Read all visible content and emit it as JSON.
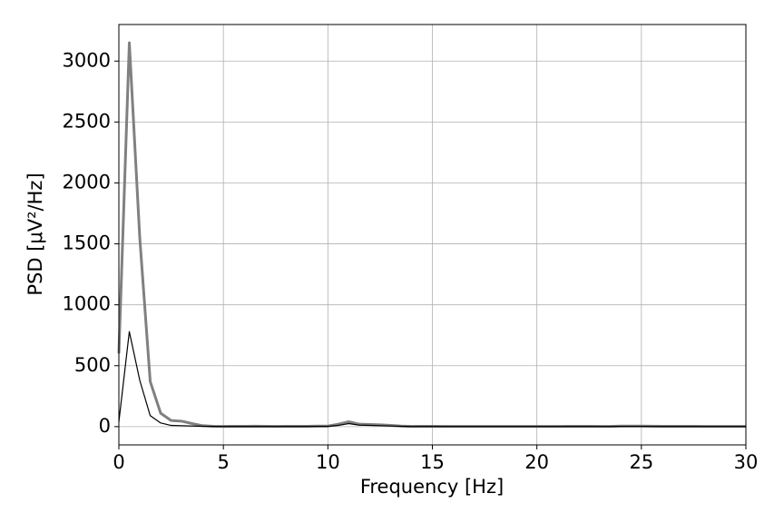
{
  "chart_data": {
    "type": "line",
    "xlabel": "Frequency [Hz]",
    "ylabel": "PSD [μV²/Hz]",
    "x": [
      0,
      0.5,
      1,
      1.5,
      2,
      2.5,
      3,
      3.5,
      4,
      4.5,
      5,
      5.5,
      6,
      6.5,
      7,
      7.5,
      8,
      8.5,
      9,
      9.5,
      10,
      10.5,
      11,
      11.5,
      12,
      12.5,
      13,
      13.5,
      14,
      14.5,
      15,
      15.5,
      16,
      16.5,
      17,
      17.5,
      18,
      18.5,
      19,
      19.5,
      20,
      20.5,
      21,
      21.5,
      22,
      22.5,
      23,
      23.5,
      24,
      24.5,
      25,
      25.5,
      26,
      26.5,
      27,
      27.5,
      28,
      28.5,
      29,
      29.5,
      30
    ],
    "series": [
      {
        "color": "#808080",
        "width": 3,
        "values": [
          600,
          3150,
          1550,
          370,
          110,
          50,
          45,
          25,
          8,
          3,
          2,
          3,
          3,
          4,
          3,
          2,
          3,
          3,
          3,
          5,
          5,
          20,
          40,
          20,
          18,
          15,
          10,
          5,
          2,
          3,
          3,
          2,
          2,
          2,
          2,
          2,
          2,
          2,
          2,
          2,
          2,
          2,
          2,
          3,
          3,
          3,
          2,
          2,
          5,
          5,
          5,
          4,
          3,
          3,
          3,
          3,
          2,
          2,
          2,
          2,
          2
        ]
      },
      {
        "color": "#000000",
        "width": 1.2,
        "values": [
          40,
          780,
          380,
          90,
          30,
          10,
          8,
          5,
          3,
          2,
          1,
          1,
          1,
          1,
          1,
          1,
          1,
          1,
          1,
          2,
          2,
          10,
          25,
          12,
          10,
          8,
          5,
          3,
          1,
          1,
          1,
          1,
          1,
          1,
          1,
          1,
          1,
          1,
          1,
          1,
          1,
          1,
          1,
          1,
          1,
          1,
          1,
          1,
          2,
          2,
          2,
          1,
          1,
          1,
          1,
          1,
          1,
          1,
          1,
          1,
          1
        ]
      }
    ],
    "xlim": [
      0,
      30
    ],
    "xticks": [
      0,
      5,
      10,
      15,
      20,
      25,
      30
    ],
    "ylim": [
      -150,
      3300
    ],
    "yticks": [
      0,
      500,
      1000,
      1500,
      2000,
      2500,
      3000
    ],
    "grid": true
  }
}
